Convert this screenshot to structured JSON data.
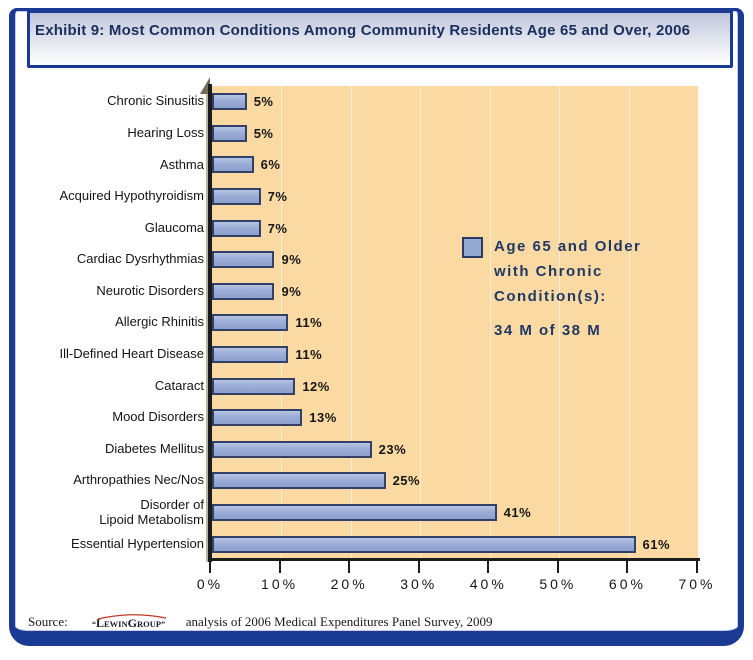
{
  "page": {
    "frame_color": "#1A3A94",
    "plot_bg_color": "#FBD9A3",
    "bar_fill_color": "#96A9D2",
    "bar_border_color": "#323F68",
    "title_text_color": "#1B2F5E"
  },
  "header": {
    "title": "Exhibit 9: Most Common Conditions Among Community Residents Age 65 and Over, 2006"
  },
  "chart_data": {
    "type": "bar",
    "orientation": "horizontal",
    "title": "Exhibit 9: Most Common Conditions Among Community Residents Age 65 and Over, 2006",
    "categories": [
      "Chronic Sinusitis",
      "Hearing Loss",
      "Asthma",
      "Acquired Hypothyroidism",
      "Glaucoma",
      "Cardiac Dysrhythmias",
      "Neurotic Disorders",
      "Allergic Rhinitis",
      "Ill-Defined Heart Disease",
      "Cataract",
      "Mood Disorders",
      "Diabetes Mellitus",
      "Arthropathies Nec/Nos",
      "Disorder of\nLipoid Metabolism",
      "Essential Hypertension"
    ],
    "values": [
      5,
      5,
      6,
      7,
      7,
      9,
      9,
      11,
      11,
      12,
      13,
      23,
      25,
      41,
      61
    ],
    "value_suffix": "%",
    "xlim": [
      0,
      70
    ],
    "x_ticks": [
      "0%",
      "10%",
      "20%",
      "30%",
      "40%",
      "50%",
      "60%",
      "70%"
    ],
    "grid": "vertical-light",
    "legend": {
      "lines": [
        "Age 65 and Older",
        "with Chronic",
        "Condition(s):"
      ],
      "note": "34 M of 38 M",
      "position": "middle-right-inside-plot"
    }
  },
  "source": {
    "label": "Source:",
    "logo_text": "LEWINGROUP",
    "text": "analysis of 2006 Medical Expenditures Panel Survey, 2009"
  }
}
